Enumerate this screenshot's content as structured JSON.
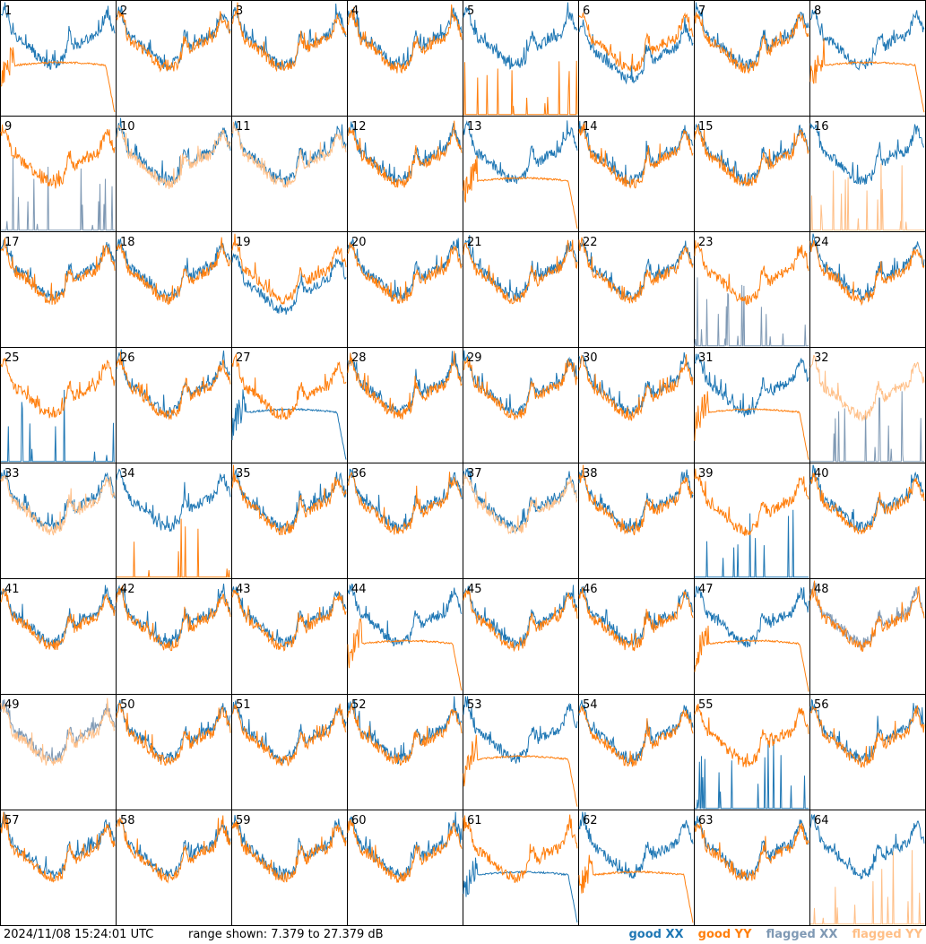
{
  "footer": {
    "timestamp": "2024/11/08 15:24:01 UTC",
    "range_label": "range shown: 7.379 to 27.379 dB"
  },
  "legend": {
    "good_xx": "good XX",
    "good_yy": "good YY",
    "flagged_xx": "flagged XX",
    "flagged_yy": "flagged YY"
  },
  "colors": {
    "good_xx": "#1f77b4",
    "good_yy": "#ff7f0e",
    "flagged_xx": "#7f99b4",
    "flagged_yy": "#ffbf87",
    "grid_line": "#000000"
  },
  "chart_data": {
    "type": "line",
    "layout": "8x8 small multiples",
    "ylim": [
      7.379,
      27.379
    ],
    "yunit": "dB",
    "panels": [
      {
        "n": "1",
        "xx": "good",
        "yy": "good",
        "yy_style": "hump"
      },
      {
        "n": "2",
        "xx": "good",
        "yy": "good"
      },
      {
        "n": "3",
        "xx": "good",
        "yy": "good"
      },
      {
        "n": "4",
        "xx": "good",
        "yy": "good"
      },
      {
        "n": "5",
        "xx": "good",
        "yy": "good",
        "yy_style": "spikes"
      },
      {
        "n": "6",
        "xx": "good",
        "yy": "good",
        "xx_level": "low"
      },
      {
        "n": "7",
        "xx": "good",
        "yy": "good"
      },
      {
        "n": "8",
        "xx": "good",
        "yy": "good",
        "yy_style": "hump"
      },
      {
        "n": "9",
        "xx": "flagged",
        "yy": "good",
        "xx_style": "spikes"
      },
      {
        "n": "10",
        "xx": "good",
        "yy": "flagged"
      },
      {
        "n": "11",
        "xx": "good",
        "yy": "flagged"
      },
      {
        "n": "12",
        "xx": "good",
        "yy": "good"
      },
      {
        "n": "13",
        "xx": "good",
        "yy": "good",
        "yy_style": "hump"
      },
      {
        "n": "14",
        "xx": "good",
        "yy": "good"
      },
      {
        "n": "15",
        "xx": "good",
        "yy": "good"
      },
      {
        "n": "16",
        "xx": "good",
        "yy": "flagged",
        "yy_style": "spikes"
      },
      {
        "n": "17",
        "xx": "good",
        "yy": "good"
      },
      {
        "n": "18",
        "xx": "good",
        "yy": "good"
      },
      {
        "n": "19",
        "xx": "good",
        "yy": "good",
        "xx_level": "low"
      },
      {
        "n": "20",
        "xx": "good",
        "yy": "good"
      },
      {
        "n": "21",
        "xx": "good",
        "yy": "good"
      },
      {
        "n": "22",
        "xx": "good",
        "yy": "good"
      },
      {
        "n": "23",
        "xx": "flagged",
        "yy": "good",
        "xx_style": "spikes"
      },
      {
        "n": "24",
        "xx": "good",
        "yy": "good"
      },
      {
        "n": "25",
        "xx": "good",
        "yy": "good",
        "xx_style": "spikes"
      },
      {
        "n": "26",
        "xx": "good",
        "yy": "good"
      },
      {
        "n": "27",
        "xx": "good",
        "yy": "good",
        "xx_style": "hump"
      },
      {
        "n": "28",
        "xx": "good",
        "yy": "good"
      },
      {
        "n": "29",
        "xx": "good",
        "yy": "good"
      },
      {
        "n": "30",
        "xx": "good",
        "yy": "good"
      },
      {
        "n": "31",
        "xx": "good",
        "yy": "good",
        "yy_style": "hump"
      },
      {
        "n": "32",
        "xx": "flagged",
        "yy": "flagged",
        "xx_style": "spikes"
      },
      {
        "n": "33",
        "xx": "good",
        "yy": "flagged"
      },
      {
        "n": "34",
        "xx": "good",
        "yy": "good",
        "yy_style": "spikes"
      },
      {
        "n": "35",
        "xx": "good",
        "yy": "good"
      },
      {
        "n": "36",
        "xx": "good",
        "yy": "good"
      },
      {
        "n": "37",
        "xx": "good",
        "yy": "flagged"
      },
      {
        "n": "38",
        "xx": "good",
        "yy": "good"
      },
      {
        "n": "39",
        "xx": "good",
        "yy": "good",
        "xx_style": "spikes"
      },
      {
        "n": "40",
        "xx": "good",
        "yy": "good"
      },
      {
        "n": "41",
        "xx": "good",
        "yy": "good"
      },
      {
        "n": "42",
        "xx": "good",
        "yy": "good"
      },
      {
        "n": "43",
        "xx": "good",
        "yy": "good"
      },
      {
        "n": "44",
        "xx": "good",
        "yy": "good",
        "yy_style": "hump"
      },
      {
        "n": "45",
        "xx": "good",
        "yy": "good"
      },
      {
        "n": "46",
        "xx": "good",
        "yy": "good"
      },
      {
        "n": "47",
        "xx": "good",
        "yy": "good",
        "yy_style": "hump"
      },
      {
        "n": "48",
        "xx": "flagged",
        "yy": "good"
      },
      {
        "n": "49",
        "xx": "flagged",
        "yy": "flagged"
      },
      {
        "n": "50",
        "xx": "good",
        "yy": "good"
      },
      {
        "n": "51",
        "xx": "good",
        "yy": "good"
      },
      {
        "n": "52",
        "xx": "good",
        "yy": "good"
      },
      {
        "n": "53",
        "xx": "good",
        "yy": "good",
        "yy_style": "hump"
      },
      {
        "n": "54",
        "xx": "good",
        "yy": "good"
      },
      {
        "n": "55",
        "xx": "good",
        "yy": "good",
        "xx_style": "spikes"
      },
      {
        "n": "56",
        "xx": "good",
        "yy": "good"
      },
      {
        "n": "57",
        "xx": "good",
        "yy": "good"
      },
      {
        "n": "58",
        "xx": "good",
        "yy": "good"
      },
      {
        "n": "59",
        "xx": "good",
        "yy": "good"
      },
      {
        "n": "60",
        "xx": "good",
        "yy": "good"
      },
      {
        "n": "61",
        "xx": "good",
        "yy": "good",
        "xx_style": "hump"
      },
      {
        "n": "62",
        "xx": "good",
        "yy": "good",
        "yy_style": "hump"
      },
      {
        "n": "63",
        "xx": "good",
        "yy": "good"
      },
      {
        "n": "64",
        "xx": "good",
        "yy": "flagged",
        "yy_style": "spikes"
      }
    ]
  }
}
